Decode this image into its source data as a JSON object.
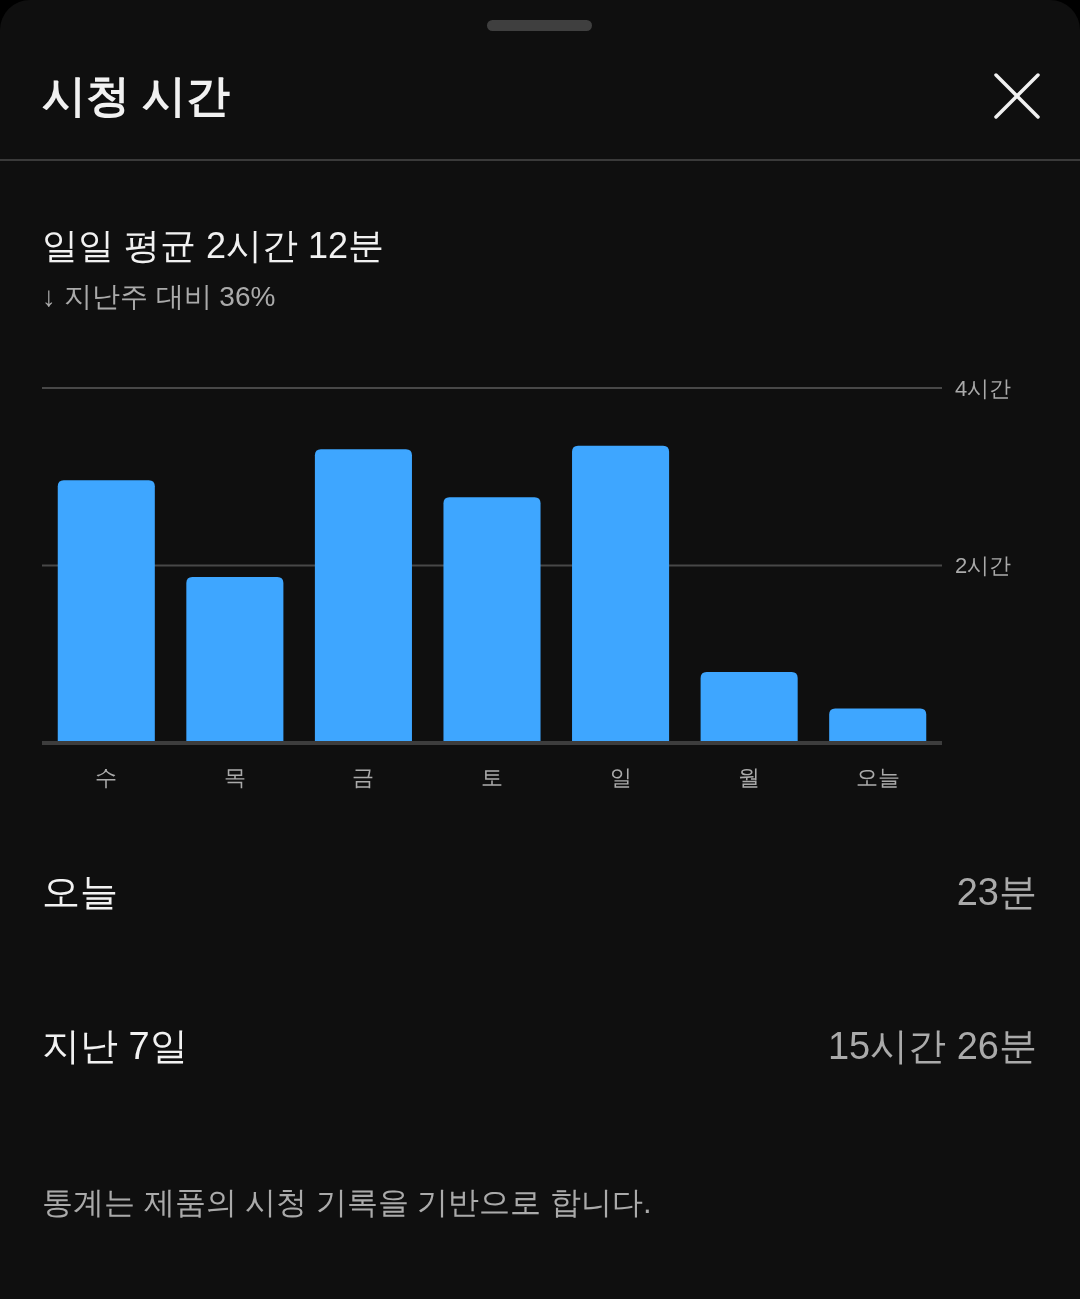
{
  "chart_data": {
    "type": "bar",
    "title": "시청 시간",
    "subtitle": "일일 평균 2시간 12분",
    "categories": [
      "수",
      "목",
      "금",
      "토",
      "일",
      "월",
      "오늘"
    ],
    "values": [
      2.96,
      1.87,
      3.31,
      2.77,
      3.35,
      0.8,
      0.39
    ],
    "color": "#3ea6ff",
    "ylim": [
      0,
      4
    ],
    "yticks": [
      {
        "value": 2,
        "label": "2시간"
      },
      {
        "value": 4,
        "label": "4시간"
      }
    ],
    "grid": "y",
    "annotations": [
      "↓ 지난주 대비 36%",
      "오늘",
      "23분",
      "지난 7일",
      "15시간 26분",
      "통계는 제품의 시청 기록을 기반으로 합니다."
    ]
  }
}
